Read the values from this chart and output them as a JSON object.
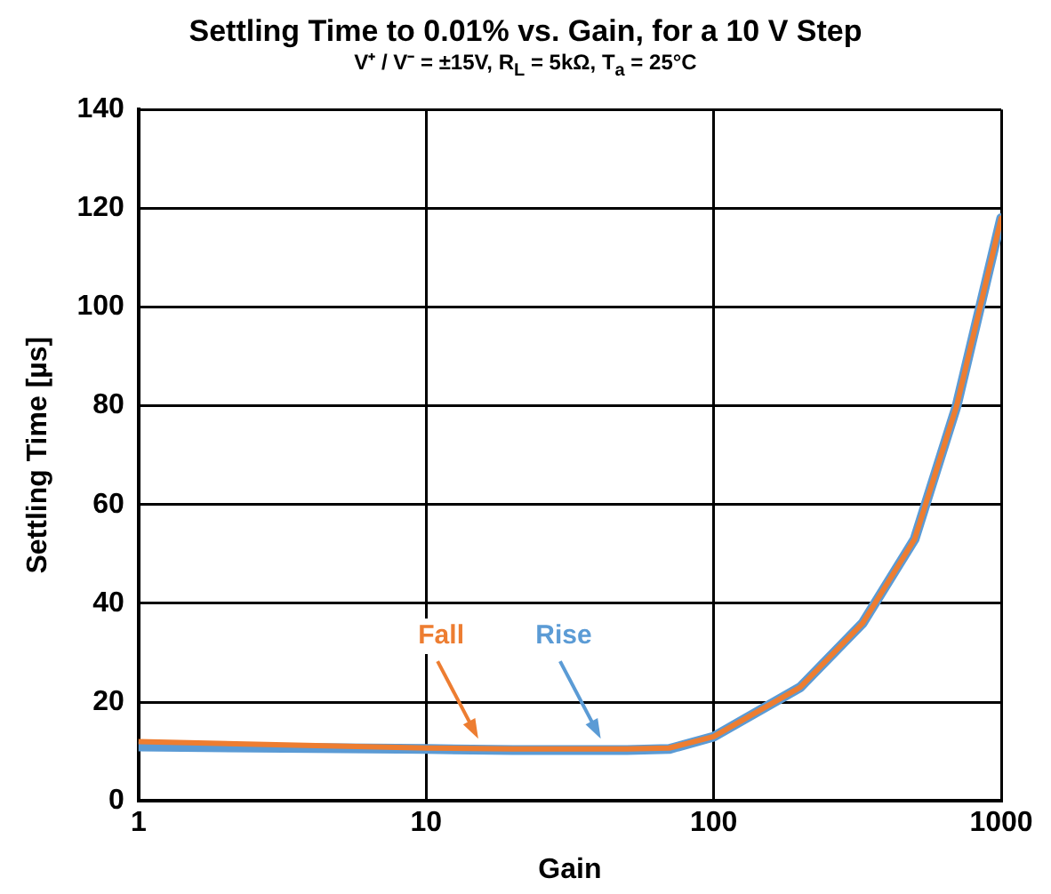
{
  "chart_data": {
    "type": "line",
    "title": "Settling Time to 0.01% vs. Gain, for a 10 V Step",
    "subtitle": "V⁺ / V⁻ = ±15V, R$_{L}$ = 5kΩ, T$_{a}$ = 25°C",
    "xlabel": "Gain",
    "ylabel": "Settling Time [µs]",
    "log": "x",
    "xlim": [
      1,
      1000
    ],
    "xticks": [
      1,
      10,
      100,
      1000
    ],
    "ylim": [
      0,
      140
    ],
    "yticks": [
      0,
      20,
      40,
      60,
      80,
      100,
      120,
      140
    ],
    "grid": true,
    "legend": false,
    "marker": "none",
    "line_style": "solid",
    "series": [
      {
        "color": "#5b9bd5",
        "x": [
          1,
          10,
          20,
          50,
          70,
          100,
          200,
          330,
          500,
          700,
          1000
        ],
        "values": [
          11,
          10.5,
          10.3,
          10.3,
          10.5,
          13,
          23,
          36,
          53,
          80,
          118
        ]
      },
      {
        "color": "#ed7d31",
        "x": [
          1,
          10,
          20,
          50,
          70,
          100,
          200,
          330,
          500,
          700,
          1000
        ],
        "values": [
          12,
          10.7,
          10.5,
          10.5,
          10.7,
          13,
          23,
          36,
          53,
          80,
          118
        ]
      }
    ],
    "annotations": [
      {
        "text": "Fall",
        "x": 15,
        "y": 11
      },
      {
        "text": "Rise",
        "x": 40,
        "y": 11
      }
    ]
  }
}
